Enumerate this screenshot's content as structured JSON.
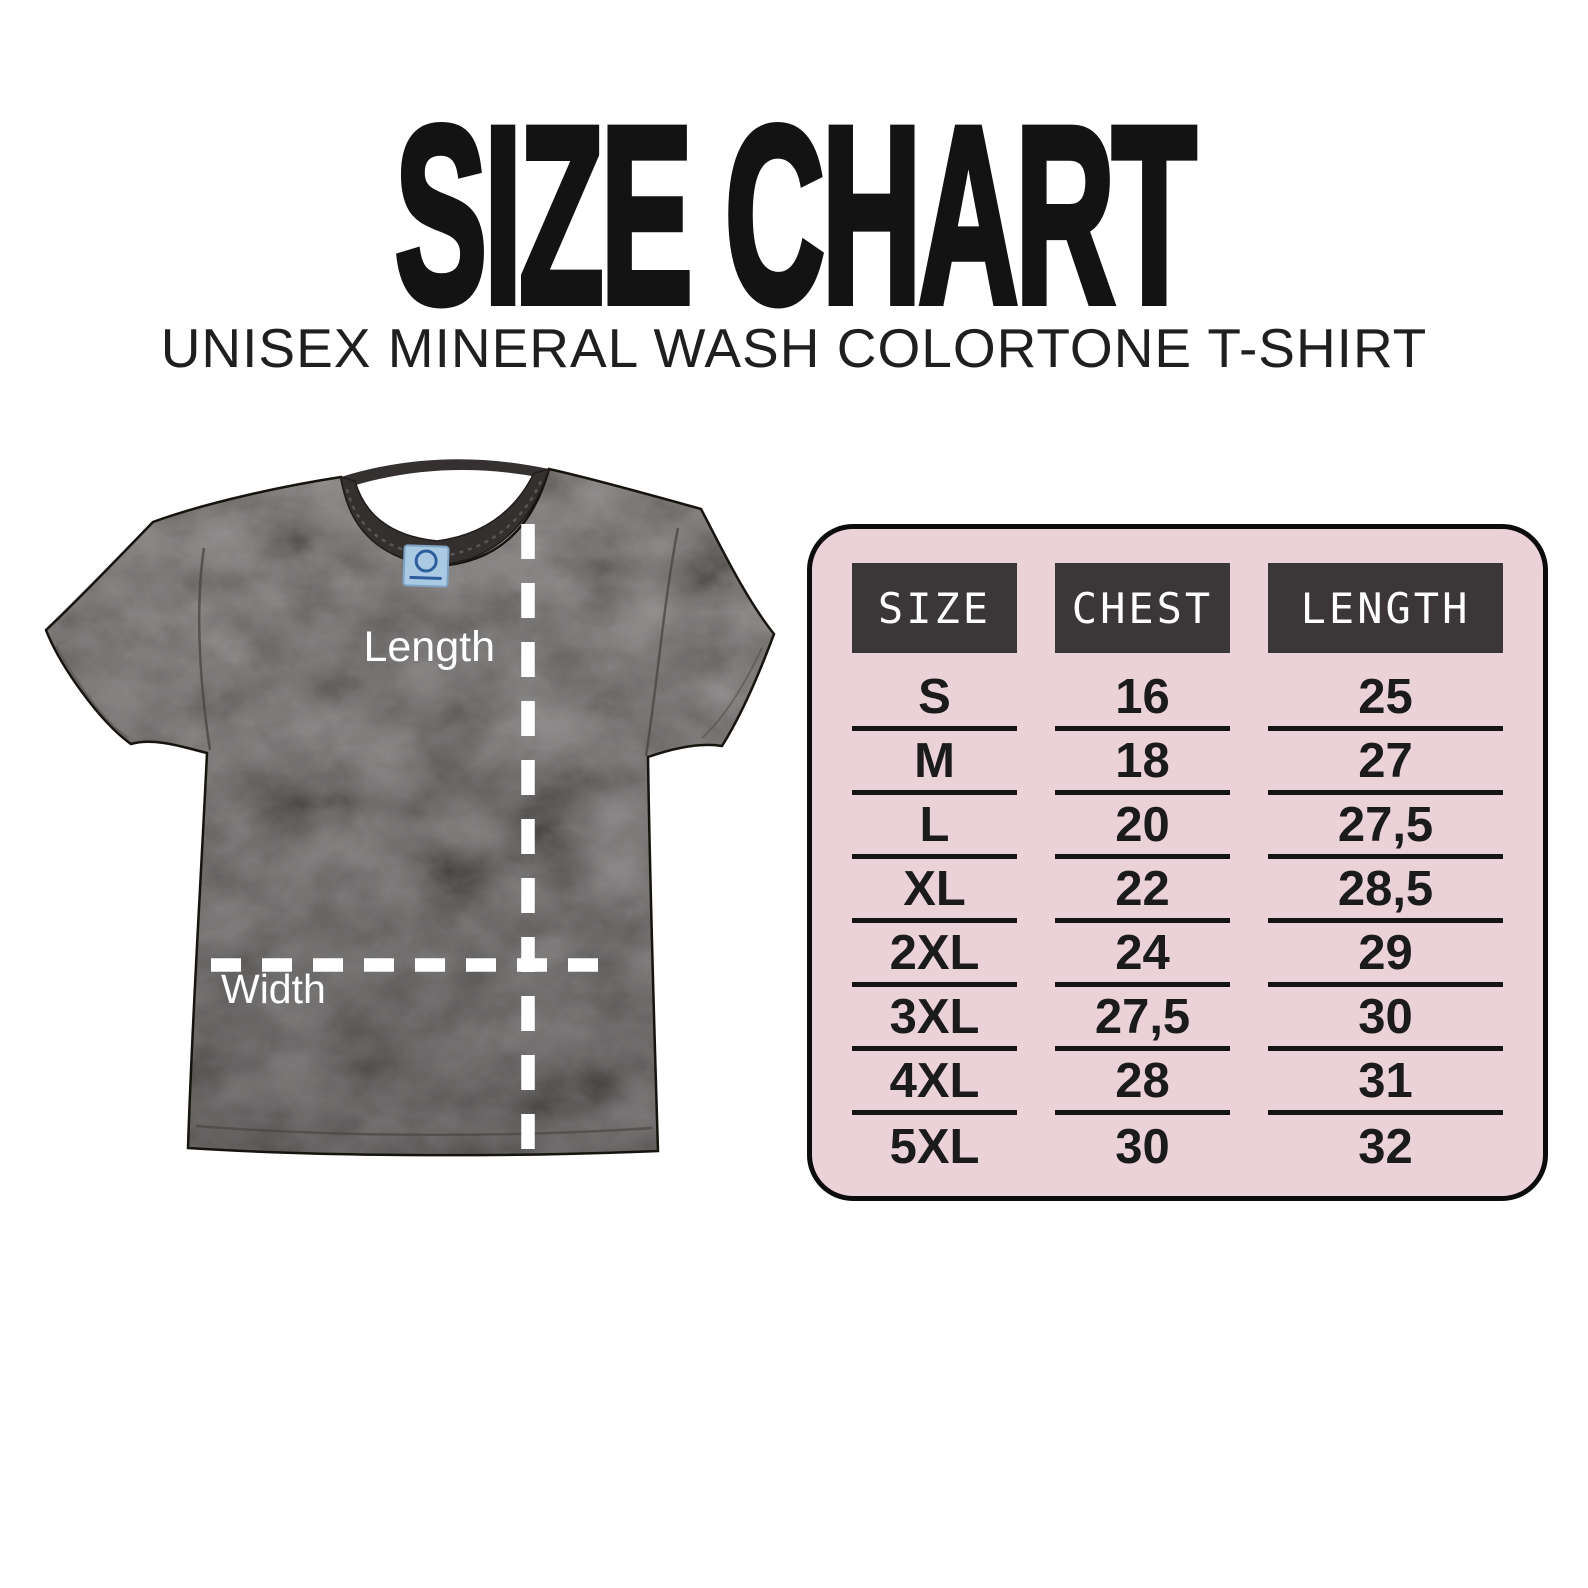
{
  "page": {
    "title": "SIZE CHART",
    "subtitle": "UNISEX MINERAL WASH COLORTONE T-SHIRT"
  },
  "diagram": {
    "product": "black mineral wash t-shirt",
    "length_label": "Length",
    "width_label": "Width"
  },
  "chart_data": {
    "type": "table",
    "title": "SIZE CHART",
    "subtitle": "UNISEX MINERAL WASH COLORTONE T-SHIRT",
    "columns": [
      "SIZE",
      "CHEST",
      "LENGTH"
    ],
    "rows": [
      [
        "S",
        "16",
        "25"
      ],
      [
        "M",
        "18",
        "27"
      ],
      [
        "L",
        "20",
        "27,5"
      ],
      [
        "XL",
        "22",
        "28,5"
      ],
      [
        "2XL",
        "24",
        "29"
      ],
      [
        "3XL",
        "27,5",
        "30"
      ],
      [
        "4XL",
        "28",
        "31"
      ],
      [
        "5XL",
        "30",
        "32"
      ]
    ]
  },
  "colors": {
    "background": "#ffffff",
    "title_text": "#131313",
    "table_bg": "#ebd2d8",
    "table_border": "#0c0c0c",
    "header_bg": "#3b3738",
    "header_text": "#ffffff",
    "cell_text": "#1b1b1b",
    "row_line": "#151515",
    "shirt_base": "#272321",
    "measure_line": "#ffffff"
  }
}
